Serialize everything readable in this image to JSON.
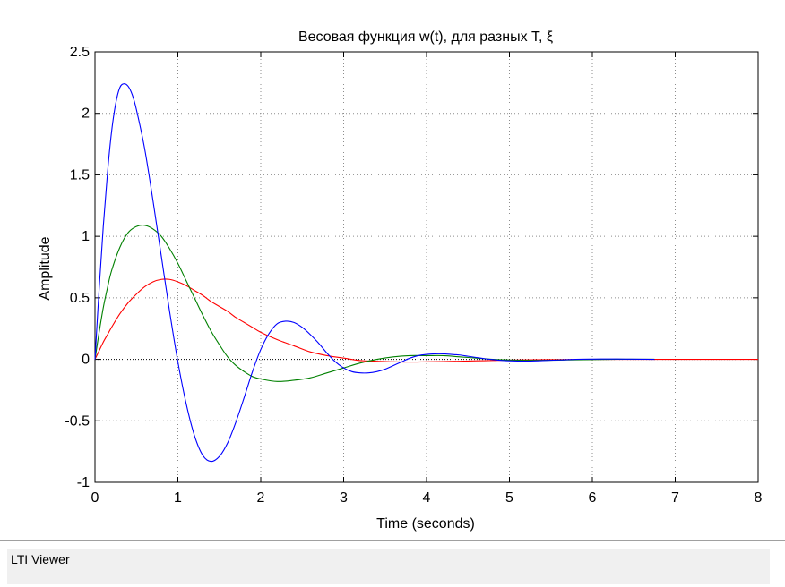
{
  "status": {
    "text": "LTI Viewer"
  },
  "chart_data": {
    "type": "line",
    "title": "Весовая функция w(t), для разных T, ξ",
    "xlabel": "Time (seconds)",
    "ylabel": "Amplitude",
    "xlim": [
      0,
      8
    ],
    "ylim": [
      -1,
      2.5
    ],
    "xticks": [
      0,
      1,
      2,
      3,
      4,
      5,
      6,
      7,
      8
    ],
    "xtick_labels": [
      "0",
      "1",
      "2",
      "3",
      "4",
      "5",
      "6",
      "7",
      "8"
    ],
    "yticks": [
      -1,
      -0.5,
      0,
      0.5,
      1,
      1.5,
      2,
      2.5
    ],
    "ytick_labels": [
      "-1",
      "-0.5",
      "0",
      "0.5",
      "1",
      "1.5",
      "2",
      "2.5"
    ],
    "grid": true,
    "zero_line": true,
    "series": [
      {
        "color": "#0000ff",
        "x": [
          0,
          0.05,
          0.1,
          0.15,
          0.2,
          0.25,
          0.3,
          0.35,
          0.4,
          0.45,
          0.5,
          0.6,
          0.7,
          0.8,
          0.9,
          1.0,
          1.1,
          1.2,
          1.3,
          1.4,
          1.5,
          1.6,
          1.7,
          1.8,
          1.9,
          2.0,
          2.1,
          2.2,
          2.3,
          2.4,
          2.5,
          2.6,
          2.7,
          2.8,
          2.9,
          3.0,
          3.1,
          3.2,
          3.3,
          3.4,
          3.5,
          3.6,
          3.7,
          3.8,
          3.9,
          4.0,
          4.1,
          4.2,
          4.3,
          4.4,
          4.5,
          4.6,
          4.7,
          4.8,
          4.9,
          5.0,
          5.2,
          5.4,
          5.6,
          5.8,
          6.0,
          6.2,
          6.4,
          6.6,
          6.75
        ],
        "y": [
          0,
          0.57,
          1.08,
          1.51,
          1.85,
          2.08,
          2.21,
          2.24,
          2.22,
          2.15,
          2.03,
          1.71,
          1.29,
          0.84,
          0.39,
          -0.02,
          -0.36,
          -0.62,
          -0.78,
          -0.83,
          -0.79,
          -0.68,
          -0.51,
          -0.31,
          -0.1,
          0.08,
          0.21,
          0.29,
          0.31,
          0.3,
          0.26,
          0.2,
          0.13,
          0.05,
          -0.02,
          -0.07,
          -0.1,
          -0.11,
          -0.11,
          -0.1,
          -0.08,
          -0.05,
          -0.02,
          0.01,
          0.03,
          0.04,
          0.045,
          0.045,
          0.04,
          0.035,
          0.025,
          0.015,
          0.005,
          -0.002,
          -0.008,
          -0.012,
          -0.014,
          -0.01,
          -0.005,
          0,
          0.002,
          0.003,
          0.002,
          0.001,
          0
        ]
      },
      {
        "color": "#008000",
        "x": [
          0,
          0.05,
          0.1,
          0.15,
          0.2,
          0.3,
          0.4,
          0.5,
          0.6,
          0.7,
          0.8,
          0.9,
          1.0,
          1.1,
          1.2,
          1.3,
          1.4,
          1.5,
          1.6,
          1.7,
          1.8,
          1.9,
          2.0,
          2.2,
          2.4,
          2.6,
          2.8,
          3.0,
          3.2,
          3.4,
          3.6,
          3.8,
          4.0,
          4.2,
          4.4,
          4.6,
          4.8,
          5.0,
          5.2,
          5.4,
          5.6,
          5.8,
          6.0,
          6.2,
          6.4,
          6.6,
          6.75
        ],
        "y": [
          0,
          0.22,
          0.42,
          0.58,
          0.72,
          0.91,
          1.03,
          1.08,
          1.09,
          1.06,
          1.0,
          0.9,
          0.78,
          0.64,
          0.5,
          0.36,
          0.23,
          0.12,
          0.02,
          -0.05,
          -0.1,
          -0.14,
          -0.16,
          -0.18,
          -0.17,
          -0.15,
          -0.11,
          -0.07,
          -0.03,
          0.0,
          0.02,
          0.03,
          0.03,
          0.03,
          0.02,
          0.01,
          0.0,
          -0.005,
          -0.008,
          -0.008,
          -0.006,
          -0.004,
          -0.002,
          0,
          0.001,
          0.001,
          0.001
        ]
      },
      {
        "color": "#ff0000",
        "x": [
          0,
          0.05,
          0.1,
          0.15,
          0.2,
          0.3,
          0.4,
          0.5,
          0.6,
          0.7,
          0.8,
          0.9,
          1.0,
          1.1,
          1.2,
          1.3,
          1.4,
          1.5,
          1.6,
          1.7,
          1.8,
          1.9,
          2.0,
          2.2,
          2.4,
          2.6,
          2.8,
          3.0,
          3.2,
          3.4,
          3.6,
          3.8,
          4.0,
          4.2,
          4.4,
          4.6,
          4.8,
          5.0,
          5.4,
          5.8,
          6.2,
          6.6,
          7.0,
          7.5,
          8.0
        ],
        "y": [
          0,
          0.07,
          0.14,
          0.2,
          0.26,
          0.37,
          0.46,
          0.53,
          0.59,
          0.63,
          0.65,
          0.65,
          0.63,
          0.6,
          0.56,
          0.52,
          0.47,
          0.43,
          0.39,
          0.34,
          0.3,
          0.26,
          0.22,
          0.16,
          0.11,
          0.06,
          0.03,
          0.01,
          -0.01,
          -0.015,
          -0.02,
          -0.022,
          -0.02,
          -0.018,
          -0.015,
          -0.012,
          -0.009,
          -0.006,
          -0.003,
          -0.001,
          0,
          0,
          0,
          0,
          0
        ]
      }
    ]
  }
}
